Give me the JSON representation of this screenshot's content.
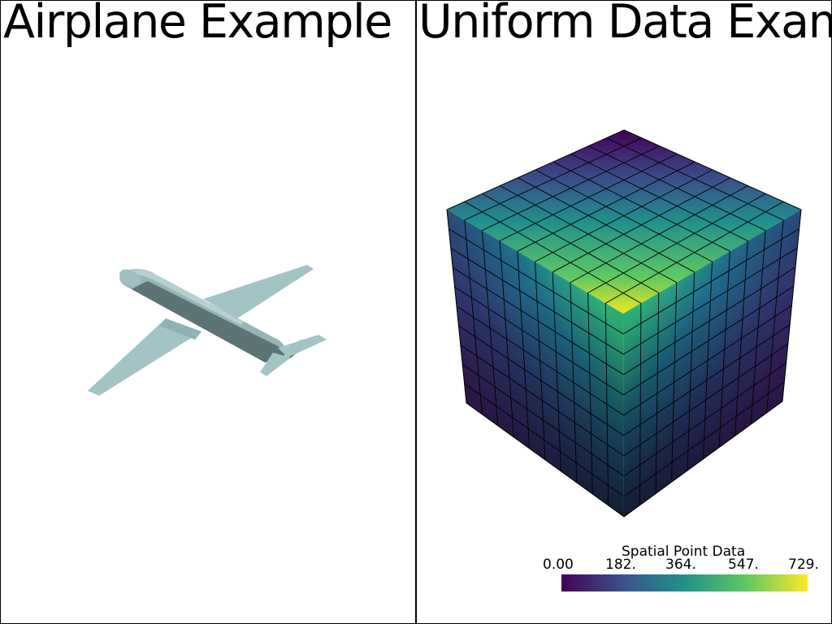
{
  "viewports": [
    {
      "title": "Airplane Example",
      "mesh_color": "#a3c4c4"
    },
    {
      "title": "Uniform Data Exam",
      "scalar_bar": {
        "title": "Spatial Point Data",
        "labels": [
          "0.00",
          "182.",
          "364.",
          "547.",
          "729."
        ],
        "colormap": "viridis",
        "colors": [
          "#440154",
          "#3b528b",
          "#21918c",
          "#5ec962",
          "#fde725"
        ]
      }
    }
  ]
}
